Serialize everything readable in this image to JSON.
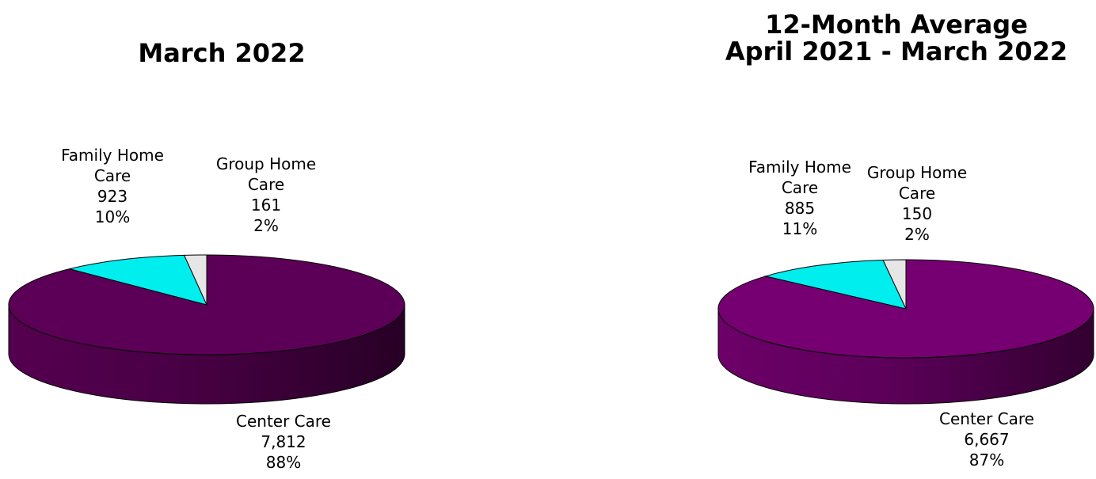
{
  "colors": {
    "center": "#5c0057",
    "center_right": "#760072",
    "family": "#00eeee",
    "group": "#e6e6e6"
  },
  "chart_data": [
    {
      "type": "pie",
      "title": "March 2022",
      "slices": [
        {
          "label_lines": [
            "Center Care"
          ],
          "value": 7812,
          "value_label": "7,812",
          "percent_label": "88%"
        },
        {
          "label_lines": [
            "Family Home",
            "Care"
          ],
          "value": 923,
          "value_label": "923",
          "percent_label": "10%"
        },
        {
          "label_lines": [
            "Group Home",
            "Care"
          ],
          "value": 161,
          "value_label": "161",
          "percent_label": "2%"
        }
      ]
    },
    {
      "type": "pie",
      "title_lines": [
        "12-Month Average",
        "April 2021 - March 2022"
      ],
      "slices": [
        {
          "label_lines": [
            "Center Care"
          ],
          "value": 6667,
          "value_label": "6,667",
          "percent_label": "87%"
        },
        {
          "label_lines": [
            "Family Home",
            "Care"
          ],
          "value": 885,
          "value_label": "885",
          "percent_label": "11%"
        },
        {
          "label_lines": [
            "Group Home",
            "Care"
          ],
          "value": 150,
          "value_label": "150",
          "percent_label": "2%"
        }
      ]
    }
  ]
}
